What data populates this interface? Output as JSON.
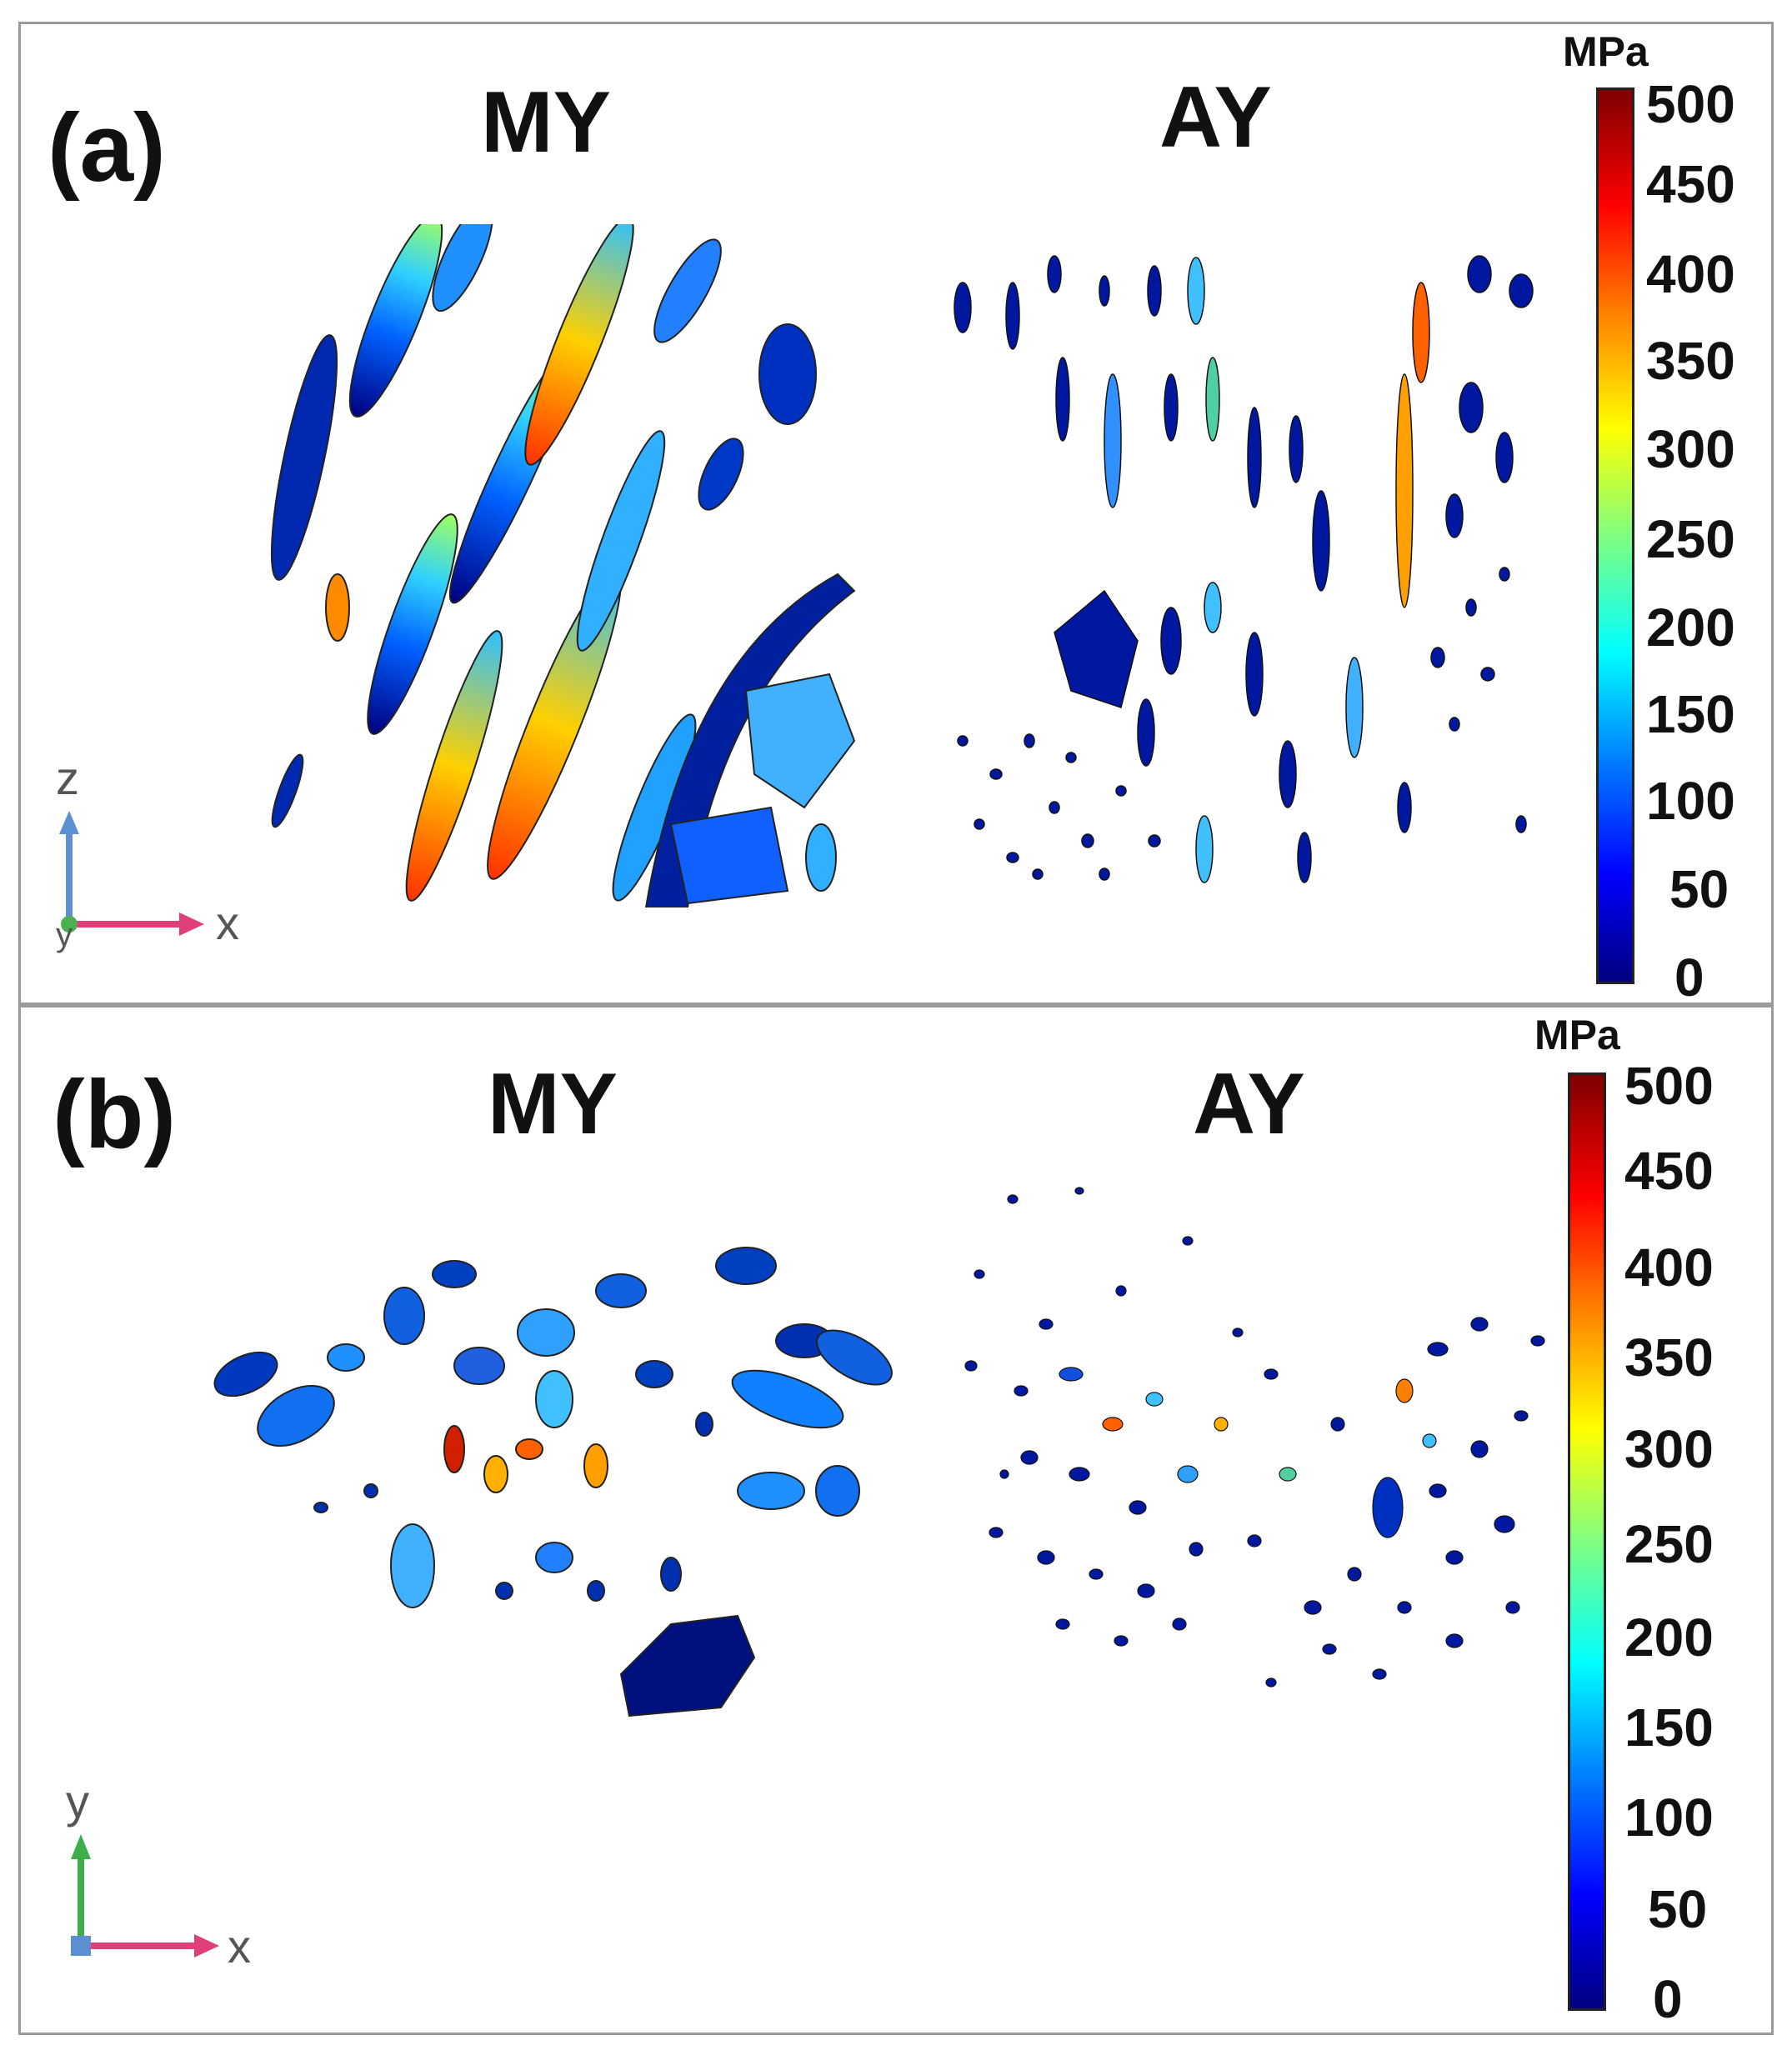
{
  "panels": [
    {
      "label": "(a)",
      "left_title": "MY",
      "right_title": "AY",
      "colorbar": {
        "unit": "MPa",
        "ticks": [
          "500",
          "450",
          "400",
          "350",
          "300",
          "250",
          "200",
          "150",
          "100",
          "50",
          "0"
        ],
        "min": 0,
        "max": 500
      },
      "axes": {
        "vertical": "z",
        "horizontal": "x",
        "out_of_plane": "y"
      }
    },
    {
      "label": "(b)",
      "left_title": "MY",
      "right_title": "AY",
      "colorbar": {
        "unit": "MPa",
        "ticks": [
          "500",
          "450",
          "400",
          "350",
          "300",
          "250",
          "200",
          "150",
          "100",
          "50",
          "0"
        ],
        "min": 0,
        "max": 500
      },
      "axes": {
        "vertical": "y",
        "horizontal": "x"
      }
    }
  ],
  "colors": {
    "low": "#00007f",
    "mid": "#00ffff",
    "high": "#7f0000",
    "axis_vertical_a": "#5b8fd1",
    "axis_vertical_b": "#3fae4a",
    "axis_horizontal": "#e0407a"
  }
}
